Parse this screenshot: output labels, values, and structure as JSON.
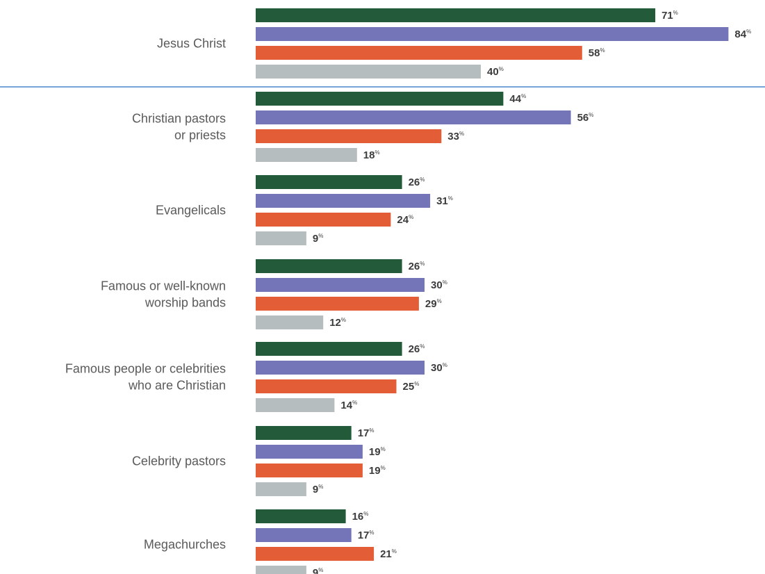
{
  "chart_data": {
    "type": "bar",
    "orientation": "horizontal",
    "categories": [
      [
        "Jesus Christ"
      ],
      [
        "Christian pastors",
        "or priests"
      ],
      [
        "Evangelicals"
      ],
      [
        "Famous or well-known",
        "worship bands"
      ],
      [
        "Famous people or celebrities",
        "who are Christian"
      ],
      [
        "Celebrity pastors"
      ],
      [
        "Megachurches"
      ]
    ],
    "series": [
      {
        "color": "#235a3a",
        "values": [
          71,
          44,
          26,
          26,
          26,
          17,
          16
        ]
      },
      {
        "color": "#7474b8",
        "values": [
          84,
          56,
          31,
          30,
          30,
          19,
          17
        ]
      },
      {
        "color": "#e35d36",
        "values": [
          58,
          33,
          24,
          29,
          25,
          19,
          21
        ]
      },
      {
        "color": "#b6bdbf",
        "values": [
          40,
          18,
          9,
          12,
          14,
          9,
          9
        ]
      }
    ],
    "value_suffix": "%",
    "divider_color": "#4a86c8",
    "grid": false
  }
}
